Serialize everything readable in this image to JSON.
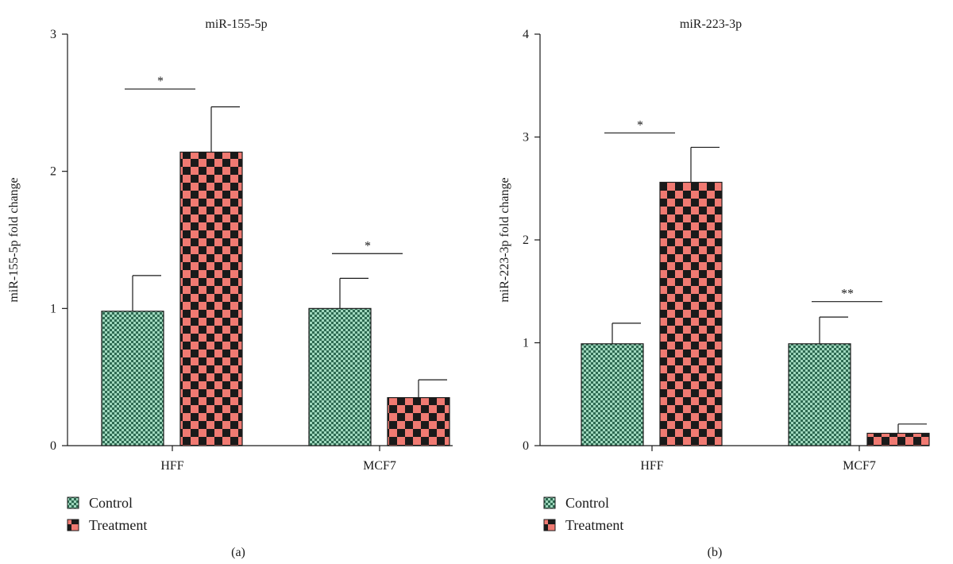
{
  "colors": {
    "control_fill": "#9fd8bd",
    "control_check": "#2e6a52",
    "treatment_fill": "#f07a72",
    "treatment_check": "#1a1a1a",
    "axis": "#1a1a1a"
  },
  "chart_data": [
    {
      "type": "bar",
      "panel_label": "(a)",
      "title": "miR-155-5p",
      "ylabel": "miR-155-5p fold change",
      "xlabel": "",
      "categories": [
        "HFF",
        "MCF7"
      ],
      "ylim": [
        0,
        3
      ],
      "yticks": [
        "0",
        "1",
        "2",
        "3"
      ],
      "series": [
        {
          "name": "Control",
          "values": [
            0.98,
            1.0
          ],
          "errors": [
            0.26,
            0.22
          ]
        },
        {
          "name": "Treatment",
          "values": [
            2.14,
            0.35
          ],
          "errors": [
            0.33,
            0.13
          ]
        }
      ],
      "significance": [
        {
          "category": "HFF",
          "label": "*",
          "y": 2.6
        },
        {
          "category": "MCF7",
          "label": "*",
          "y": 1.4
        }
      ],
      "legend_position": "bottom-left",
      "grid": false
    },
    {
      "type": "bar",
      "panel_label": "(b)",
      "title": "miR-223-3p",
      "ylabel": "miR-223-3p fold change",
      "xlabel": "",
      "categories": [
        "HFF",
        "MCF7"
      ],
      "ylim": [
        0,
        4
      ],
      "yticks": [
        "0",
        "1",
        "2",
        "3",
        "4"
      ],
      "series": [
        {
          "name": "Control",
          "values": [
            0.99,
            0.99
          ],
          "errors": [
            0.2,
            0.26
          ]
        },
        {
          "name": "Treatment",
          "values": [
            2.56,
            0.12
          ],
          "errors": [
            0.34,
            0.09
          ]
        }
      ],
      "significance": [
        {
          "category": "HFF",
          "label": "*",
          "y": 3.04
        },
        {
          "category": "MCF7",
          "label": "**",
          "y": 1.4
        }
      ],
      "legend_position": "bottom-left",
      "grid": false
    }
  ]
}
